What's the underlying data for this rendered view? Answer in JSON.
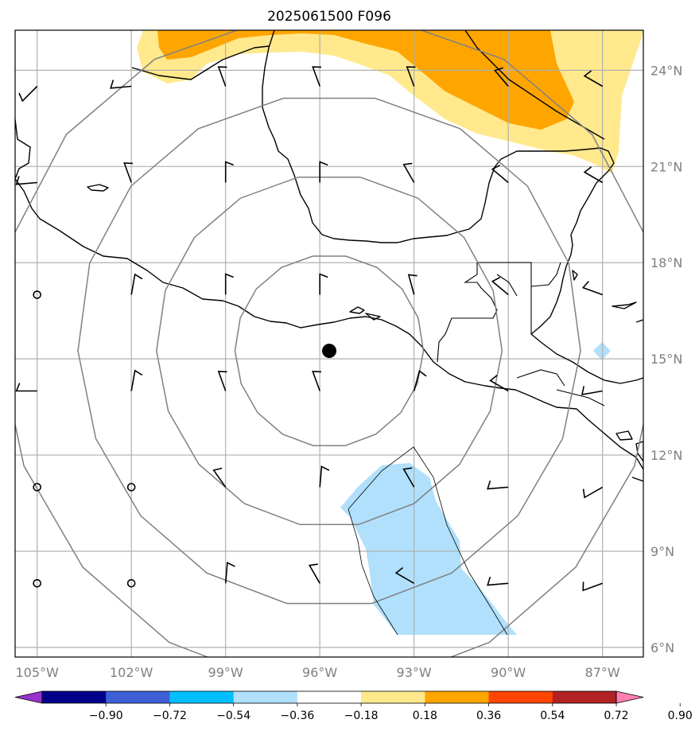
{
  "title": "2025061500 F096",
  "lon_labels": [
    "105°W",
    "102°W",
    "99°W",
    "96°W",
    "93°W",
    "90°W",
    "87°W"
  ],
  "lon_values": [
    -105,
    -102,
    -99,
    -96,
    -93,
    -90,
    -87
  ],
  "lat_labels": [
    "24°N",
    "21°N",
    "18°N",
    "15°N",
    "12°N",
    "9°N",
    "6°N"
  ],
  "lat_values": [
    24,
    21,
    18,
    15,
    12,
    9,
    6
  ],
  "map_extent": {
    "lon_min": -105.7,
    "lon_max": -85.7,
    "lat_min": 5.7,
    "lat_max": 25.25
  },
  "center_marker": {
    "lon": -95.7,
    "lat": 15.25
  },
  "range_rings_deg": [
    3,
    5.5,
    8,
    10.5
  ],
  "colorbar": {
    "labels": [
      "−0.90",
      "−0.72",
      "−0.54",
      "−0.36",
      "−0.18",
      "0.18",
      "0.36",
      "0.54",
      "0.72",
      "0.90"
    ],
    "bounds": [
      -0.9,
      -0.72,
      -0.54,
      -0.36,
      -0.18,
      0.18,
      0.36,
      0.54,
      0.72,
      0.9
    ],
    "colors": [
      "#9932cc",
      "#00008b",
      "#3e5fd6",
      "#00bfff",
      "#b0e0fc",
      "#ffffff",
      "#ffe98c",
      "#ffa500",
      "#ff4500",
      "#b22222",
      "#ff80b0"
    ]
  },
  "shading": [
    {
      "level": "0.18-0.36",
      "color": "#ffe98c"
    },
    {
      "level": "0.36-0.54",
      "color": "#ffa500"
    },
    {
      "level": "-0.36--0.18",
      "color": "#b0e0fc"
    }
  ],
  "wind_barbs": [
    {
      "lon": -105,
      "lat": 23.5,
      "dir": 225,
      "spd": 5
    },
    {
      "lon": -102,
      "lat": 23.5,
      "dir": 265,
      "spd": 5
    },
    {
      "lon": -99,
      "lat": 23.5,
      "dir": 340,
      "spd": 5
    },
    {
      "lon": -96,
      "lat": 23.5,
      "dir": 340,
      "spd": 5
    },
    {
      "lon": -93,
      "lat": 23.5,
      "dir": 340,
      "spd": 5
    },
    {
      "lon": -90,
      "lat": 23.5,
      "dir": 320,
      "spd": 5
    },
    {
      "lon": -87,
      "lat": 23.5,
      "dir": 300,
      "spd": 5
    },
    {
      "lon": -105,
      "lat": 20.5,
      "dir": 265,
      "spd": 5
    },
    {
      "lon": -102,
      "lat": 20.5,
      "dir": 340,
      "spd": 5
    },
    {
      "lon": -99,
      "lat": 20.5,
      "dir": 360,
      "spd": 5
    },
    {
      "lon": -96,
      "lat": 20.5,
      "dir": 360,
      "spd": 5
    },
    {
      "lon": -93,
      "lat": 20.5,
      "dir": 330,
      "spd": 5
    },
    {
      "lon": -90,
      "lat": 20.5,
      "dir": 310,
      "spd": 5
    },
    {
      "lon": -87,
      "lat": 20.5,
      "dir": 300,
      "spd": 5
    },
    {
      "lon": -105,
      "lat": 17.0,
      "dir": 0,
      "spd": 0
    },
    {
      "lon": -102,
      "lat": 17.0,
      "dir": 10,
      "spd": 5
    },
    {
      "lon": -99,
      "lat": 17.0,
      "dir": 360,
      "spd": 5
    },
    {
      "lon": -96,
      "lat": 17.0,
      "dir": 360,
      "spd": 5
    },
    {
      "lon": -93,
      "lat": 17.0,
      "dir": 345,
      "spd": 5
    },
    {
      "lon": -90,
      "lat": 17.0,
      "dir": 310,
      "spd": 5
    },
    {
      "lon": -87,
      "lat": 17.0,
      "dir": 290,
      "spd": 5
    },
    {
      "lon": -105,
      "lat": 14.0,
      "dir": 270,
      "spd": 5
    },
    {
      "lon": -102,
      "lat": 14.0,
      "dir": 10,
      "spd": 5
    },
    {
      "lon": -99,
      "lat": 14.0,
      "dir": 340,
      "spd": 5
    },
    {
      "lon": -96,
      "lat": 14.0,
      "dir": 340,
      "spd": 5
    },
    {
      "lon": -93,
      "lat": 14.0,
      "dir": 15,
      "spd": 5
    },
    {
      "lon": -90,
      "lat": 14.0,
      "dir": 300,
      "spd": 5
    },
    {
      "lon": -87,
      "lat": 14.0,
      "dir": 260,
      "spd": 5
    },
    {
      "lon": -105,
      "lat": 11.0,
      "dir": 0,
      "spd": 0
    },
    {
      "lon": -102,
      "lat": 11.0,
      "dir": 0,
      "spd": 0
    },
    {
      "lon": -99,
      "lat": 11.0,
      "dir": 325,
      "spd": 5
    },
    {
      "lon": -96,
      "lat": 11.0,
      "dir": 5,
      "spd": 5
    },
    {
      "lon": -93,
      "lat": 11.0,
      "dir": 330,
      "spd": 5
    },
    {
      "lon": -90,
      "lat": 11.0,
      "dir": 265,
      "spd": 5
    },
    {
      "lon": -87,
      "lat": 11.0,
      "dir": 240,
      "spd": 5
    },
    {
      "lon": -105,
      "lat": 8.0,
      "dir": 0,
      "spd": 0
    },
    {
      "lon": -102,
      "lat": 8.0,
      "dir": 0,
      "spd": 0
    },
    {
      "lon": -99,
      "lat": 8.0,
      "dir": 5,
      "spd": 5
    },
    {
      "lon": -96,
      "lat": 8.0,
      "dir": 330,
      "spd": 5
    },
    {
      "lon": -93,
      "lat": 8.0,
      "dir": 300,
      "spd": 5
    },
    {
      "lon": -90,
      "lat": 8.0,
      "dir": 265,
      "spd": 5
    },
    {
      "lon": -87,
      "lat": 8.0,
      "dir": 250,
      "spd": 5
    }
  ]
}
